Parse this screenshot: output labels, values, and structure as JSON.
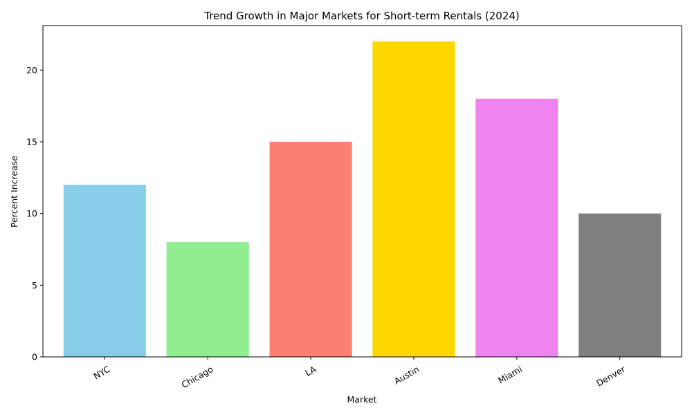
{
  "chart_data": {
    "type": "bar",
    "title": "Trend Growth in Major Markets for Short-term Rentals (2024)",
    "xlabel": "Market",
    "ylabel": "Percent Increase",
    "categories": [
      "NYC",
      "Chicago",
      "LA",
      "Austin",
      "Miami",
      "Denver"
    ],
    "values": [
      12,
      8,
      15,
      22,
      18,
      10
    ],
    "colors": [
      "#87ceeb",
      "#90ee90",
      "#fa8072",
      "#ffd700",
      "#ee82ee",
      "#808080"
    ],
    "ylim": [
      0,
      23.1
    ],
    "yticks": [
      0,
      5,
      10,
      15,
      20
    ],
    "grid": false,
    "legend": "none"
  }
}
